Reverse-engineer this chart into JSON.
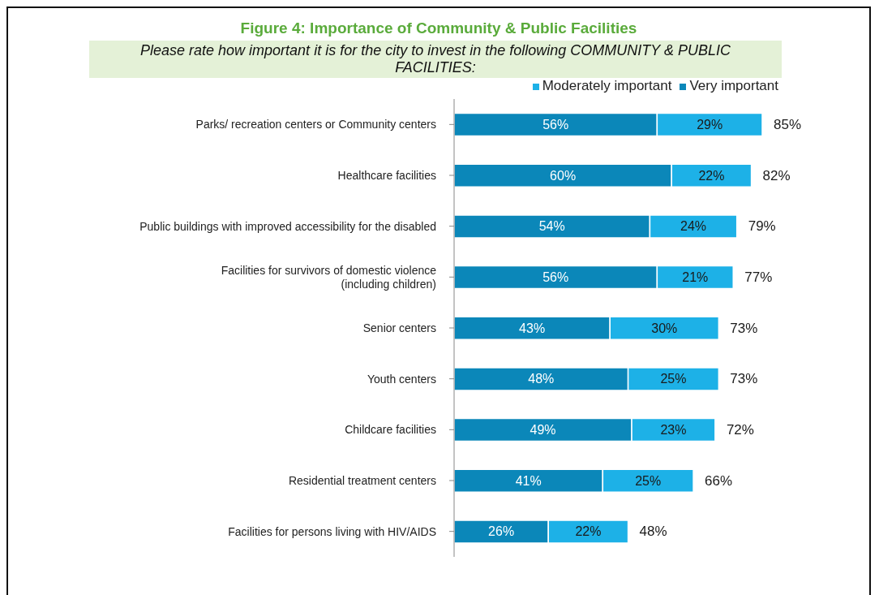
{
  "chart_data": {
    "type": "bar",
    "orientation": "horizontal",
    "stacked": true,
    "title": "Figure 4: Importance of Community & Public Facilities",
    "subtitle": "Please rate how important it is for the city to invest in the following COMMUNITY & PUBLIC FACILITIES:",
    "categories": [
      "Parks/ recreation centers or Community centers",
      "Healthcare facilities",
      "Public buildings with improved accessibility for the disabled",
      "Facilities for survivors of domestic violence (including children)",
      "Senior centers",
      "Youth centers",
      "Childcare facilities",
      "Residential treatment centers",
      "Facilities for persons living with HIV/AIDS"
    ],
    "series": [
      {
        "name": "Very important",
        "color": "#0b87b9",
        "values": [
          56,
          60,
          54,
          56,
          43,
          48,
          49,
          41,
          26
        ],
        "value_labels": [
          "56%",
          "60%",
          "54%",
          "56%",
          "43%",
          "48%",
          "49%",
          "41%",
          "26%"
        ]
      },
      {
        "name": "Moderately important",
        "color": "#1db1e7",
        "values": [
          29,
          22,
          24,
          21,
          30,
          25,
          23,
          25,
          22
        ],
        "value_labels": [
          "29%",
          "22%",
          "24%",
          "21%",
          "30%",
          "25%",
          "23%",
          "25%",
          "22%"
        ]
      }
    ],
    "totals": [
      "85%",
      "82%",
      "79%",
      "77%",
      "73%",
      "73%",
      "72%",
      "66%",
      "48%"
    ],
    "legend": "top right"
  }
}
